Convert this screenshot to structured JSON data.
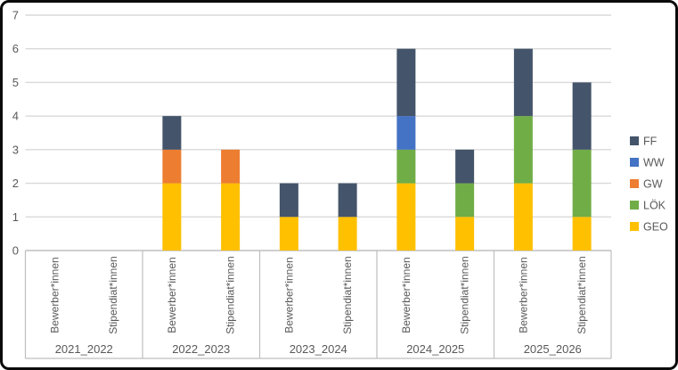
{
  "frame": {
    "background": "#ffffff",
    "border_color": "#0b0b0b"
  },
  "chart_data": {
    "type": "bar",
    "stacked": true,
    "title": "",
    "groups": [
      "2021_2022",
      "2022_2023",
      "2023_2024",
      "2024_2025",
      "2025_2026"
    ],
    "subcategories": [
      "Bewerber*innen",
      "Stipendiat*innen"
    ],
    "series": [
      {
        "name": "GEO",
        "color": "#FFC000",
        "values": [
          0,
          0,
          2,
          2,
          1,
          1,
          2,
          1,
          2,
          1
        ]
      },
      {
        "name": "LÖK",
        "color": "#70AD47",
        "values": [
          0,
          0,
          0,
          0,
          0,
          0,
          1,
          1,
          2,
          2
        ]
      },
      {
        "name": "GW",
        "color": "#ED7D31",
        "values": [
          0,
          0,
          1,
          1,
          0,
          0,
          0,
          0,
          0,
          0
        ]
      },
      {
        "name": "WW",
        "color": "#4472C4",
        "values": [
          0,
          0,
          0,
          0,
          0,
          0,
          1,
          0,
          0,
          0
        ]
      },
      {
        "name": "FF",
        "color": "#44546A",
        "values": [
          0,
          0,
          1,
          0,
          1,
          1,
          2,
          1,
          2,
          2
        ]
      }
    ],
    "bar_totals": [
      0,
      0,
      4,
      3,
      2,
      2,
      6,
      3,
      6,
      5
    ],
    "legend_order": [
      "FF",
      "WW",
      "GW",
      "LÖK",
      "GEO"
    ],
    "legend_position": "right",
    "y_axis": {
      "min": 0,
      "max": 7,
      "step": 1,
      "tick_labels": [
        "0",
        "1",
        "2",
        "3",
        "4",
        "5",
        "6",
        "7"
      ]
    },
    "grid": true,
    "gridline_color": "#D9D9D9",
    "axis_line_color": "#BFBFBF",
    "text_color": "#595959"
  }
}
